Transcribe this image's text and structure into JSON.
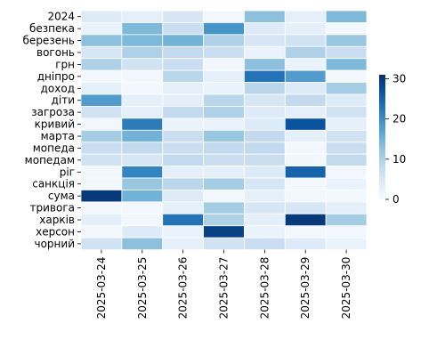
{
  "chart_data": {
    "type": "heatmap",
    "title": "",
    "xlabel": "",
    "ylabel": "",
    "x_labels": [
      "2025-03-24",
      "2025-03-25",
      "2025-03-26",
      "2025-03-27",
      "2025-03-28",
      "2025-03-29",
      "2025-03-30"
    ],
    "y_labels": [
      "2024",
      "безпека",
      "березень",
      "вогонь",
      "грн",
      "дніпро",
      "доход",
      "діти",
      "загроза",
      "кривий",
      "марта",
      "мопеда",
      "мопедам",
      "ріг",
      "санкція",
      "сума",
      "тривога",
      "харків",
      "херсон",
      "чорний"
    ],
    "values": [
      [
        4,
        3,
        5,
        1,
        13,
        3,
        14
      ],
      [
        2,
        14,
        7,
        19,
        4,
        3,
        1
      ],
      [
        13,
        14,
        15,
        10,
        5,
        6,
        12
      ],
      [
        5,
        10,
        8,
        7,
        2,
        10,
        7
      ],
      [
        10,
        6,
        7,
        1,
        13,
        2,
        14
      ],
      [
        1,
        1,
        9,
        3,
        23,
        18,
        1
      ],
      [
        3,
        1,
        3,
        2,
        9,
        4,
        11
      ],
      [
        18,
        3,
        3,
        9,
        5,
        8,
        4
      ],
      [
        6,
        3,
        8,
        10,
        4,
        3,
        6
      ],
      [
        1,
        22,
        2,
        2,
        4,
        27,
        3
      ],
      [
        11,
        15,
        7,
        12,
        8,
        3,
        6
      ],
      [
        7,
        8,
        7,
        8,
        8,
        1,
        7
      ],
      [
        6,
        5,
        8,
        7,
        7,
        1,
        8
      ],
      [
        1,
        21,
        3,
        3,
        4,
        25,
        1
      ],
      [
        1,
        12,
        9,
        11,
        5,
        1,
        2
      ],
      [
        30,
        15,
        4,
        1,
        3,
        1,
        1
      ],
      [
        1,
        1,
        3,
        11,
        5,
        5,
        3
      ],
      [
        3,
        1,
        23,
        10,
        3,
        30,
        11
      ],
      [
        1,
        4,
        2,
        29,
        2,
        1,
        1
      ],
      [
        6,
        13,
        3,
        6,
        7,
        4,
        2
      ]
    ],
    "vmin": 0,
    "vmax": 31,
    "colormap": "Blues",
    "colorbar_ticks": [
      0,
      10,
      20,
      30
    ],
    "grid": true,
    "legend": "colorbar-right"
  }
}
